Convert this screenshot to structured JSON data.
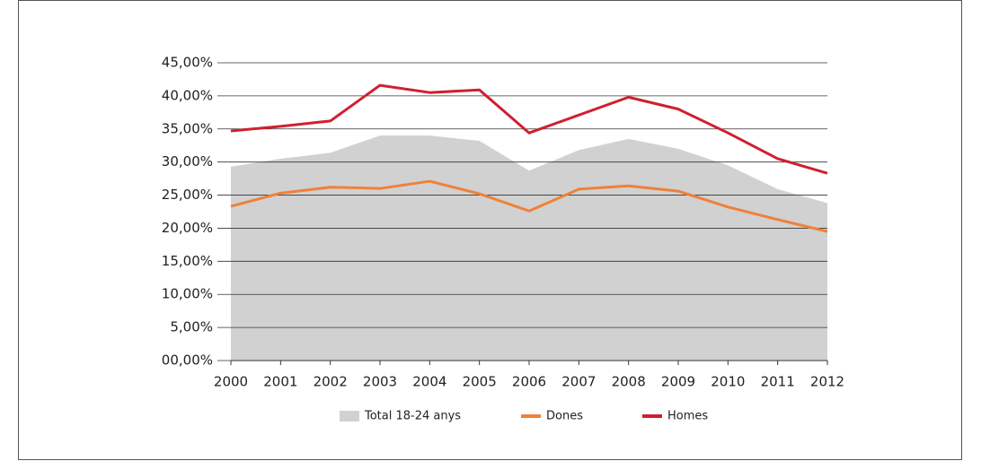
{
  "chart_data": {
    "type": "line",
    "categories": [
      "2000",
      "2001",
      "2002",
      "2003",
      "2004",
      "2005",
      "2006",
      "2007",
      "2008",
      "2009",
      "2010",
      "2011",
      "2012"
    ],
    "series": [
      {
        "name": "Total 18-24 anys",
        "type": "area",
        "color": "#d1d1d1",
        "values": [
          29.3,
          30.5,
          31.4,
          34.0,
          34.0,
          33.2,
          28.7,
          31.8,
          33.5,
          32.0,
          29.5,
          25.9,
          23.8
        ]
      },
      {
        "name": "Dones",
        "type": "line",
        "color": "#ef8139",
        "values": [
          23.3,
          25.3,
          26.2,
          26.0,
          27.1,
          25.2,
          22.6,
          25.9,
          26.4,
          25.6,
          23.2,
          21.3,
          19.5
        ]
      },
      {
        "name": "Homes",
        "type": "line",
        "color": "#cf2030",
        "values": [
          34.7,
          35.4,
          36.2,
          41.6,
          40.5,
          40.9,
          34.4,
          37.1,
          39.8,
          38.0,
          34.4,
          30.5,
          28.3
        ]
      }
    ],
    "ylim": [
      0,
      45
    ],
    "yticks": [
      {
        "value": 0,
        "label": "00,00%"
      },
      {
        "value": 5,
        "label": "5,00%"
      },
      {
        "value": 10,
        "label": "10,00%"
      },
      {
        "value": 15,
        "label": "15,00%"
      },
      {
        "value": 20,
        "label": "20,00%"
      },
      {
        "value": 25,
        "label": "25,00%"
      },
      {
        "value": 30,
        "label": "30,00%"
      },
      {
        "value": 35,
        "label": "35,00%"
      },
      {
        "value": 40,
        "label": "40,00%"
      },
      {
        "value": 45,
        "label": "45,00%"
      }
    ],
    "grid": true,
    "legend": "bottom"
  }
}
